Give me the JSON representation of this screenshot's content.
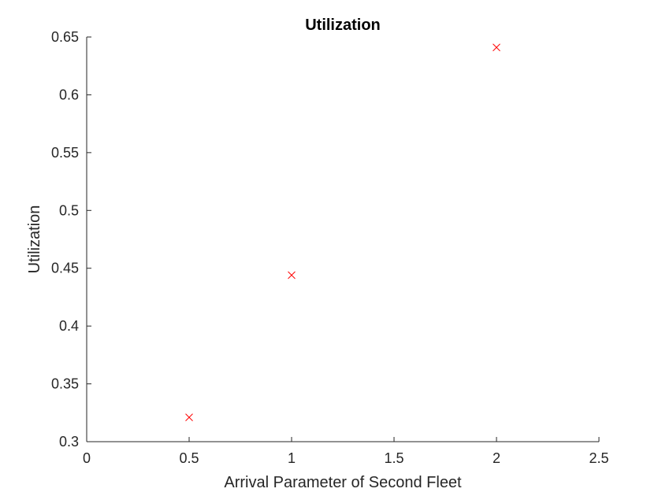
{
  "chart_data": {
    "type": "scatter",
    "title": "Utilization",
    "xlabel": "Arrival Parameter of Second Fleet",
    "ylabel": "Utilization",
    "xlim": [
      0,
      2.5
    ],
    "ylim": [
      0.3,
      0.65
    ],
    "xticks": [
      0,
      0.5,
      1,
      1.5,
      2,
      2.5
    ],
    "xtick_labels": [
      "0",
      "0.5",
      "1",
      "1.5",
      "2",
      "2.5"
    ],
    "yticks": [
      0.3,
      0.35,
      0.4,
      0.45,
      0.5,
      0.55,
      0.6,
      0.65
    ],
    "ytick_labels": [
      "0.3",
      "0.35",
      "0.4",
      "0.45",
      "0.5",
      "0.55",
      "0.6",
      "0.65"
    ],
    "grid": false,
    "marker": "x",
    "marker_color": "#ff0000",
    "axis_color": "#262626",
    "series": [
      {
        "x": [
          0.5,
          1,
          2
        ],
        "y": [
          0.321,
          0.444,
          0.641
        ]
      }
    ]
  }
}
